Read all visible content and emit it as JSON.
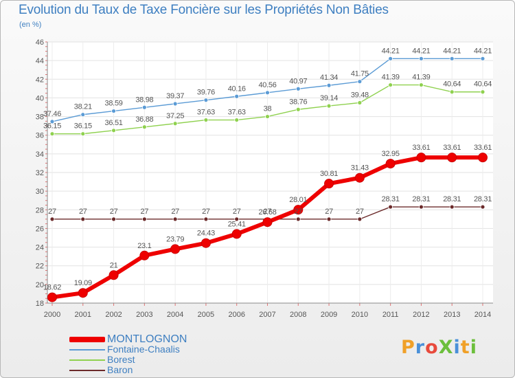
{
  "title": "Evolution du Taux de Taxe Foncière sur les Propriétés Non Bâties",
  "unit_label": "(en %)",
  "logo": "ProXiti",
  "colors": {
    "title": "#3e7fc1",
    "montlognon": "#ee0000",
    "fontaine": "#5b9bd5",
    "borest": "#8fd14f",
    "baron": "#6b2a2a"
  },
  "chart_data": {
    "type": "line",
    "title": "Evolution du Taux de Taxe Foncière sur les Propriétés Non Bâties",
    "ylabel": "(en %)",
    "xlabel": "",
    "x": [
      "2000",
      "2001",
      "2002",
      "2003",
      "2004",
      "2005",
      "2006",
      "2007",
      "2008",
      "2009",
      "2010",
      "2011",
      "2012",
      "2013",
      "2014"
    ],
    "ylim": [
      18,
      46
    ],
    "yticks": [
      "18",
      "20",
      "22",
      "24",
      "26",
      "28",
      "30",
      "32",
      "34",
      "36",
      "38",
      "40",
      "42",
      "44",
      "46"
    ],
    "grid": true,
    "legend_position": "bottom-left",
    "series": [
      {
        "name": "MONTLOGNON",
        "color": "#ee0000",
        "values": [
          18.62,
          19.09,
          21,
          23.1,
          23.79,
          24.43,
          25.41,
          26.68,
          28.01,
          30.81,
          31.43,
          32.95,
          33.61,
          33.61,
          33.61
        ],
        "labels": [
          "18.62",
          "19.09",
          "21",
          "23.1",
          "23.79",
          "24.43",
          "25.41",
          "26.68",
          "28.01",
          "30.81",
          "31.43",
          "32.95",
          "33.61",
          "33.61",
          "33.61"
        ]
      },
      {
        "name": "Fontaine-Chaalis",
        "color": "#5b9bd5",
        "values": [
          37.46,
          38.21,
          38.59,
          38.98,
          39.37,
          39.76,
          40.16,
          40.56,
          40.97,
          41.34,
          41.75,
          44.21,
          44.21,
          44.21,
          44.21
        ],
        "labels": [
          "37.46",
          "38.21",
          "38.59",
          "38.98",
          "39.37",
          "39.76",
          "40.16",
          "40.56",
          "40.97",
          "41.34",
          "41.75",
          "44.21",
          "44.21",
          "44.21",
          "44.21"
        ]
      },
      {
        "name": "Borest",
        "color": "#8fd14f",
        "values": [
          36.15,
          36.15,
          36.51,
          36.88,
          37.25,
          37.63,
          37.63,
          38,
          38.76,
          39.14,
          39.48,
          41.39,
          41.39,
          40.64,
          40.64
        ],
        "labels": [
          "36.15",
          "36.15",
          "36.51",
          "36.88",
          "37.25",
          "37.63",
          "37.63",
          "38",
          "38.76",
          "39.14",
          "39.48",
          "41.39",
          "41.39",
          "40.64",
          "40.64"
        ]
      },
      {
        "name": "Baron",
        "color": "#6b2a2a",
        "values": [
          27,
          27,
          27,
          27,
          27,
          27,
          27,
          27,
          27,
          27,
          27,
          28.31,
          28.31,
          28.31,
          28.31
        ],
        "labels": [
          "27",
          "27",
          "27",
          "27",
          "27",
          "27",
          "27",
          "27",
          "27",
          "27",
          "27",
          "28.31",
          "28.31",
          "28.31",
          "28.31"
        ]
      }
    ]
  }
}
